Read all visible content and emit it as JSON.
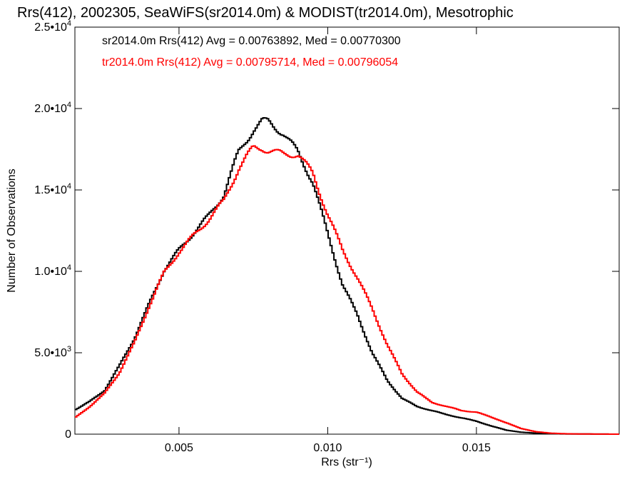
{
  "chart_data": {
    "type": "line",
    "title": "Rrs(412), 2002305, SeaWiFS(sr2014.0m) & MODIST(tr2014.0m), Mesotrophic",
    "xlabel": "Rrs (str⁻¹)",
    "ylabel": "Number of Observations",
    "xlim": [
      0.0015,
      0.0198
    ],
    "ylim": [
      0,
      25000
    ],
    "grid": false,
    "legend_placement": "top-left",
    "x_ticks": [
      {
        "value": 0.005,
        "label": "0.005"
      },
      {
        "value": 0.01,
        "label": "0.010"
      },
      {
        "value": 0.015,
        "label": "0.015"
      }
    ],
    "y_ticks": [
      {
        "value": 0,
        "mant": "0",
        "exp": ""
      },
      {
        "value": 5000,
        "mant": "5.0•10",
        "exp": "3"
      },
      {
        "value": 10000,
        "mant": "1.0•10",
        "exp": "4"
      },
      {
        "value": 15000,
        "mant": "1.5•10",
        "exp": "4"
      },
      {
        "value": 20000,
        "mant": "2.0•10",
        "exp": "4"
      },
      {
        "value": 25000,
        "mant": "2.5•10",
        "exp": "4"
      }
    ],
    "series": [
      {
        "name": "sr2014.0m",
        "legend": "sr2014.0m Rrs(412) Avg = 0.00763892, Med = 0.00770300",
        "color": "#000000",
        "x": [
          0.0015,
          0.002,
          0.0025,
          0.003,
          0.0035,
          0.004,
          0.0045,
          0.005,
          0.0055,
          0.006,
          0.0065,
          0.007,
          0.0075,
          0.0078,
          0.008,
          0.0085,
          0.009,
          0.0095,
          0.01,
          0.0105,
          0.011,
          0.0115,
          0.012,
          0.0125,
          0.013,
          0.0135,
          0.014,
          0.0145,
          0.015,
          0.0155,
          0.016,
          0.0165,
          0.017,
          0.0175,
          0.018,
          0.0185,
          0.019,
          0.0198
        ],
        "y": [
          1500,
          2000,
          2700,
          4200,
          5900,
          8000,
          10100,
          11300,
          12400,
          13400,
          14700,
          17300,
          18700,
          19200,
          19200,
          18500,
          17300,
          15500,
          12300,
          9200,
          7300,
          5000,
          3300,
          2200,
          1700,
          1450,
          1200,
          1000,
          800,
          500,
          250,
          120,
          60,
          30,
          15,
          10,
          5,
          0
        ]
      },
      {
        "name": "tr2014.0m",
        "legend": "tr2014.0m Rrs(412) Avg = 0.00795714, Med = 0.00796054",
        "color": "#ff0000",
        "x": [
          0.0015,
          0.002,
          0.0025,
          0.003,
          0.0035,
          0.004,
          0.0045,
          0.005,
          0.0055,
          0.006,
          0.0065,
          0.007,
          0.0075,
          0.0078,
          0.008,
          0.0085,
          0.009,
          0.0095,
          0.01,
          0.0105,
          0.011,
          0.0115,
          0.012,
          0.0125,
          0.013,
          0.0135,
          0.014,
          0.0145,
          0.015,
          0.0155,
          0.016,
          0.0165,
          0.017,
          0.0175,
          0.018,
          0.0185,
          0.019,
          0.0198
        ],
        "y": [
          1000,
          1700,
          2500,
          3800,
          5600,
          7900,
          9900,
          11200,
          12200,
          13200,
          14300,
          16300,
          17600,
          17600,
          17400,
          17200,
          17200,
          16000,
          13500,
          11300,
          9600,
          7700,
          5500,
          3700,
          2600,
          1950,
          1700,
          1450,
          1350,
          1050,
          700,
          350,
          150,
          60,
          25,
          12,
          5,
          0
        ]
      }
    ]
  }
}
